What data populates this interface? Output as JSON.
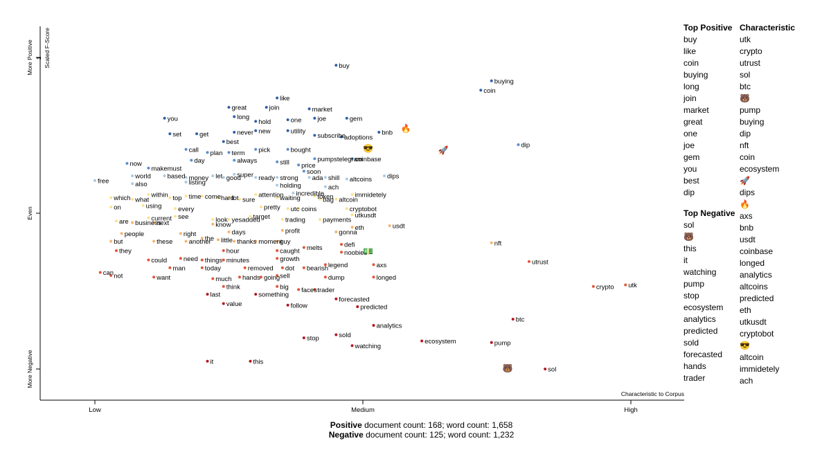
{
  "chart_data": {
    "type": "scatter",
    "title": "",
    "xlabel": "Characteristic to Corpus",
    "ylabel": "Scaled F-Score",
    "x_ticks": [
      "Low",
      "Medium",
      "High"
    ],
    "y_ticks": [
      "More Positive",
      "Even",
      "More Negative"
    ],
    "y_tick_value": "1",
    "xlim": [
      0,
      1
    ],
    "ylim": [
      -1,
      1
    ],
    "grid": false,
    "legend": "none",
    "colors": {
      "strong_positive": "#3060a8",
      "positive": "#5b8fcc",
      "light_positive": "#a9c9e3",
      "neutral": "#ffe08a",
      "light_negative": "#f7b46a",
      "negative": "#e4543a",
      "strong_negative": "#b8161e"
    },
    "points": [
      {
        "term": "buy",
        "x": 0.45,
        "y": 0.95
      },
      {
        "term": "buying",
        "x": 0.74,
        "y": 0.85
      },
      {
        "term": "coin",
        "x": 0.72,
        "y": 0.79
      },
      {
        "term": "like",
        "x": 0.34,
        "y": 0.74
      },
      {
        "term": "great",
        "x": 0.25,
        "y": 0.68
      },
      {
        "term": "join",
        "x": 0.32,
        "y": 0.68
      },
      {
        "term": "market",
        "x": 0.4,
        "y": 0.67
      },
      {
        "term": "you",
        "x": 0.13,
        "y": 0.61
      },
      {
        "term": "long",
        "x": 0.26,
        "y": 0.62
      },
      {
        "term": "hold",
        "x": 0.3,
        "y": 0.59
      },
      {
        "term": "one",
        "x": 0.36,
        "y": 0.6
      },
      {
        "term": "joe",
        "x": 0.41,
        "y": 0.61
      },
      {
        "term": "gem",
        "x": 0.47,
        "y": 0.61
      },
      {
        "term": "set",
        "x": 0.14,
        "y": 0.51
      },
      {
        "term": "get",
        "x": 0.19,
        "y": 0.51
      },
      {
        "term": "never",
        "x": 0.26,
        "y": 0.52
      },
      {
        "term": "new",
        "x": 0.3,
        "y": 0.53
      },
      {
        "term": "utility",
        "x": 0.36,
        "y": 0.53
      },
      {
        "term": "subscribe",
        "x": 0.41,
        "y": 0.5
      },
      {
        "term": "adoptions",
        "x": 0.46,
        "y": 0.49
      },
      {
        "term": "bnb",
        "x": 0.53,
        "y": 0.52
      },
      {
        "term": "call",
        "x": 0.17,
        "y": 0.41
      },
      {
        "term": "best",
        "x": 0.24,
        "y": 0.46
      },
      {
        "term": "plan",
        "x": 0.21,
        "y": 0.39
      },
      {
        "term": "term",
        "x": 0.25,
        "y": 0.39
      },
      {
        "term": "pick",
        "x": 0.3,
        "y": 0.41
      },
      {
        "term": "bought",
        "x": 0.36,
        "y": 0.41
      },
      {
        "term": "dip",
        "x": 0.79,
        "y": 0.44
      },
      {
        "term": "makemust",
        "x": 0.1,
        "y": 0.29
      },
      {
        "term": "now",
        "x": 0.06,
        "y": 0.32
      },
      {
        "term": "day",
        "x": 0.18,
        "y": 0.34
      },
      {
        "term": "always",
        "x": 0.26,
        "y": 0.34
      },
      {
        "term": "still",
        "x": 0.34,
        "y": 0.33
      },
      {
        "term": "price",
        "x": 0.38,
        "y": 0.31
      },
      {
        "term": "pumpstelegram",
        "x": 0.41,
        "y": 0.35
      },
      {
        "term": "coinbase",
        "x": 0.48,
        "y": 0.35
      },
      {
        "term": "world",
        "x": 0.07,
        "y": 0.24
      },
      {
        "term": "based",
        "x": 0.13,
        "y": 0.24
      },
      {
        "term": "money",
        "x": 0.17,
        "y": 0.23
      },
      {
        "term": "let",
        "x": 0.22,
        "y": 0.24
      },
      {
        "term": "good",
        "x": 0.24,
        "y": 0.23
      },
      {
        "term": "super",
        "x": 0.26,
        "y": 0.25
      },
      {
        "term": "ready",
        "x": 0.3,
        "y": 0.23
      },
      {
        "term": "strong",
        "x": 0.34,
        "y": 0.23
      },
      {
        "term": "soon",
        "x": 0.39,
        "y": 0.27
      },
      {
        "term": "ada",
        "x": 0.4,
        "y": 0.23
      },
      {
        "term": "shill",
        "x": 0.43,
        "y": 0.23
      },
      {
        "term": "altcoins",
        "x": 0.47,
        "y": 0.22
      },
      {
        "term": "dips",
        "x": 0.54,
        "y": 0.24
      },
      {
        "term": "free",
        "x": 0.0,
        "y": 0.21
      },
      {
        "term": "also",
        "x": 0.07,
        "y": 0.19
      },
      {
        "term": "listing",
        "x": 0.17,
        "y": 0.2
      },
      {
        "term": "holding",
        "x": 0.34,
        "y": 0.18
      },
      {
        "term": "ach",
        "x": 0.43,
        "y": 0.17
      },
      {
        "term": "which",
        "x": 0.03,
        "y": 0.1
      },
      {
        "term": "within",
        "x": 0.1,
        "y": 0.12
      },
      {
        "term": "top",
        "x": 0.14,
        "y": 0.1
      },
      {
        "term": "time",
        "x": 0.17,
        "y": 0.11
      },
      {
        "term": "come",
        "x": 0.2,
        "y": 0.11
      },
      {
        "term": "hard",
        "x": 0.23,
        "y": 0.1
      },
      {
        "term": "lot",
        "x": 0.25,
        "y": 0.1
      },
      {
        "term": "sure",
        "x": 0.27,
        "y": 0.09
      },
      {
        "term": "attention",
        "x": 0.3,
        "y": 0.12
      },
      {
        "term": "waiting",
        "x": 0.34,
        "y": 0.1
      },
      {
        "term": "incredible",
        "x": 0.37,
        "y": 0.13
      },
      {
        "term": "token",
        "x": 0.41,
        "y": 0.11
      },
      {
        "term": "bag",
        "x": 0.42,
        "y": 0.09
      },
      {
        "term": "altcoin",
        "x": 0.45,
        "y": 0.09
      },
      {
        "term": "immidetely",
        "x": 0.48,
        "y": 0.12
      },
      {
        "term": "what",
        "x": 0.07,
        "y": 0.09
      },
      {
        "term": "on",
        "x": 0.03,
        "y": 0.04
      },
      {
        "term": "using",
        "x": 0.09,
        "y": 0.05
      },
      {
        "term": "every",
        "x": 0.15,
        "y": 0.03
      },
      {
        "term": "pretty",
        "x": 0.31,
        "y": 0.04
      },
      {
        "term": "utc",
        "x": 0.36,
        "y": 0.03
      },
      {
        "term": "coins",
        "x": 0.38,
        "y": 0.03
      },
      {
        "term": "cryptobot",
        "x": 0.47,
        "y": 0.03
      },
      {
        "term": "are",
        "x": 0.04,
        "y": -0.05
      },
      {
        "term": "current",
        "x": 0.1,
        "y": -0.03
      },
      {
        "term": "see",
        "x": 0.15,
        "y": -0.02
      },
      {
        "term": "look",
        "x": 0.22,
        "y": -0.04
      },
      {
        "term": "yesadded",
        "x": 0.25,
        "y": -0.04
      },
      {
        "term": "target",
        "x": 0.29,
        "y": -0.02
      },
      {
        "term": "trading",
        "x": 0.35,
        "y": -0.04
      },
      {
        "term": "payments",
        "x": 0.42,
        "y": -0.04
      },
      {
        "term": "utkusdt",
        "x": 0.48,
        "y": -0.01
      },
      {
        "term": "business",
        "x": 0.07,
        "y": -0.06
      },
      {
        "term": "next",
        "x": 0.11,
        "y": -0.06
      },
      {
        "term": "know",
        "x": 0.22,
        "y": -0.07
      },
      {
        "term": "eth",
        "x": 0.48,
        "y": -0.09
      },
      {
        "term": "usdt",
        "x": 0.55,
        "y": -0.08
      },
      {
        "term": "people",
        "x": 0.05,
        "y": -0.13
      },
      {
        "term": "right",
        "x": 0.16,
        "y": -0.13
      },
      {
        "term": "days",
        "x": 0.25,
        "y": -0.12
      },
      {
        "term": "profit",
        "x": 0.35,
        "y": -0.11
      },
      {
        "term": "gonna",
        "x": 0.45,
        "y": -0.12
      },
      {
        "term": "but",
        "x": 0.03,
        "y": -0.18
      },
      {
        "term": "these",
        "x": 0.11,
        "y": -0.18
      },
      {
        "term": "another",
        "x": 0.17,
        "y": -0.18
      },
      {
        "term": "the",
        "x": 0.2,
        "y": -0.16
      },
      {
        "term": "little",
        "x": 0.23,
        "y": -0.17
      },
      {
        "term": "thanks",
        "x": 0.26,
        "y": -0.18
      },
      {
        "term": "moment",
        "x": 0.3,
        "y": -0.18
      },
      {
        "term": "guy",
        "x": 0.34,
        "y": -0.18
      },
      {
        "term": "melts",
        "x": 0.39,
        "y": -0.22
      },
      {
        "term": "defi",
        "x": 0.46,
        "y": -0.2
      },
      {
        "term": "nft",
        "x": 0.74,
        "y": -0.19
      },
      {
        "term": "they",
        "x": 0.04,
        "y": -0.24
      },
      {
        "term": "hour",
        "x": 0.24,
        "y": -0.24
      },
      {
        "term": "caught",
        "x": 0.34,
        "y": -0.24
      },
      {
        "term": "noobies",
        "x": 0.46,
        "y": -0.25
      },
      {
        "term": "could",
        "x": 0.1,
        "y": -0.3
      },
      {
        "term": "need",
        "x": 0.16,
        "y": -0.29
      },
      {
        "term": "things",
        "x": 0.2,
        "y": -0.3
      },
      {
        "term": "minutes",
        "x": 0.24,
        "y": -0.3
      },
      {
        "term": "growth",
        "x": 0.34,
        "y": -0.29
      },
      {
        "term": "utrust",
        "x": 0.81,
        "y": -0.31
      },
      {
        "term": "man",
        "x": 0.14,
        "y": -0.35
      },
      {
        "term": "today",
        "x": 0.2,
        "y": -0.35
      },
      {
        "term": "removed",
        "x": 0.28,
        "y": -0.35
      },
      {
        "term": "dot",
        "x": 0.35,
        "y": -0.35
      },
      {
        "term": "bearish",
        "x": 0.39,
        "y": -0.35
      },
      {
        "term": "legend",
        "x": 0.43,
        "y": -0.33
      },
      {
        "term": "axs",
        "x": 0.52,
        "y": -0.33
      },
      {
        "term": "can",
        "x": 0.01,
        "y": -0.38
      },
      {
        "term": "not",
        "x": 0.03,
        "y": -0.4
      },
      {
        "term": "want",
        "x": 0.11,
        "y": -0.41
      },
      {
        "term": "much",
        "x": 0.22,
        "y": -0.42
      },
      {
        "term": "hands",
        "x": 0.27,
        "y": -0.41
      },
      {
        "term": "going",
        "x": 0.31,
        "y": -0.41
      },
      {
        "term": "sell",
        "x": 0.34,
        "y": -0.4
      },
      {
        "term": "dump",
        "x": 0.43,
        "y": -0.41
      },
      {
        "term": "longed",
        "x": 0.52,
        "y": -0.41
      },
      {
        "term": "crypto",
        "x": 0.93,
        "y": -0.47
      },
      {
        "term": "utk",
        "x": 0.99,
        "y": -0.46
      },
      {
        "term": "think",
        "x": 0.24,
        "y": -0.47
      },
      {
        "term": "big",
        "x": 0.34,
        "y": -0.47
      },
      {
        "term": "faces",
        "x": 0.38,
        "y": -0.49
      },
      {
        "term": "trader",
        "x": 0.41,
        "y": -0.49
      },
      {
        "term": "last",
        "x": 0.21,
        "y": -0.52
      },
      {
        "term": "something",
        "x": 0.3,
        "y": -0.52
      },
      {
        "term": "forecasted",
        "x": 0.45,
        "y": -0.55
      },
      {
        "term": "value",
        "x": 0.24,
        "y": -0.58
      },
      {
        "term": "follow",
        "x": 0.36,
        "y": -0.59
      },
      {
        "term": "predicted",
        "x": 0.49,
        "y": -0.6
      },
      {
        "term": "btc",
        "x": 0.78,
        "y": -0.68
      },
      {
        "term": "analytics",
        "x": 0.52,
        "y": -0.72
      },
      {
        "term": "sold",
        "x": 0.45,
        "y": -0.78
      },
      {
        "term": "stop",
        "x": 0.39,
        "y": -0.8
      },
      {
        "term": "ecosystem",
        "x": 0.61,
        "y": -0.82
      },
      {
        "term": "watching",
        "x": 0.48,
        "y": -0.85
      },
      {
        "term": "pump",
        "x": 0.74,
        "y": -0.83
      },
      {
        "term": "it",
        "x": 0.21,
        "y": -0.95
      },
      {
        "term": "this",
        "x": 0.29,
        "y": -0.95
      },
      {
        "term": "sol",
        "x": 0.84,
        "y": -1.0
      }
    ],
    "emoji_points": [
      {
        "emoji": "🔥",
        "x": 0.58,
        "y": 0.55
      },
      {
        "emoji": "😎",
        "x": 0.51,
        "y": 0.42
      },
      {
        "emoji": "🚀",
        "x": 0.65,
        "y": 0.41
      },
      {
        "emoji": "💵",
        "x": 0.51,
        "y": -0.24
      },
      {
        "emoji": "🐻",
        "x": 0.77,
        "y": -0.99
      }
    ]
  },
  "side_panels": {
    "top_positive": {
      "title": "Top Positive",
      "items": [
        "buy",
        "like",
        "coin",
        "buying",
        "long",
        "join",
        "market",
        "great",
        "one",
        "joe",
        "gem",
        "you",
        "best",
        "dip"
      ]
    },
    "top_negative": {
      "title": "Top Negative",
      "items": [
        "sol",
        "🐻",
        "this",
        "it",
        "watching",
        "pump",
        "stop",
        "ecosystem",
        "analytics",
        "predicted",
        "sold",
        "forecasted",
        "hands",
        "trader"
      ]
    },
    "characteristic": {
      "title": "Characteristic",
      "items": [
        "utk",
        "crypto",
        "utrust",
        "sol",
        "btc",
        "🐻",
        "pump",
        "buying",
        "dip",
        "nft",
        "coin",
        "ecosystem",
        "🚀",
        "dips",
        "🔥",
        "axs",
        "bnb",
        "usdt",
        "coinbase",
        "longed",
        "analytics",
        "altcoins",
        "predicted",
        "eth",
        "utkusdt",
        "cryptobot",
        "😎",
        "altcoin",
        "immidetely",
        "ach"
      ]
    }
  },
  "footer": {
    "positive_label": "Positive",
    "positive_text": "document count: 168; word count: 1,658",
    "negative_label": "Negative",
    "negative_text": "document count: 125; word count: 1,232"
  }
}
